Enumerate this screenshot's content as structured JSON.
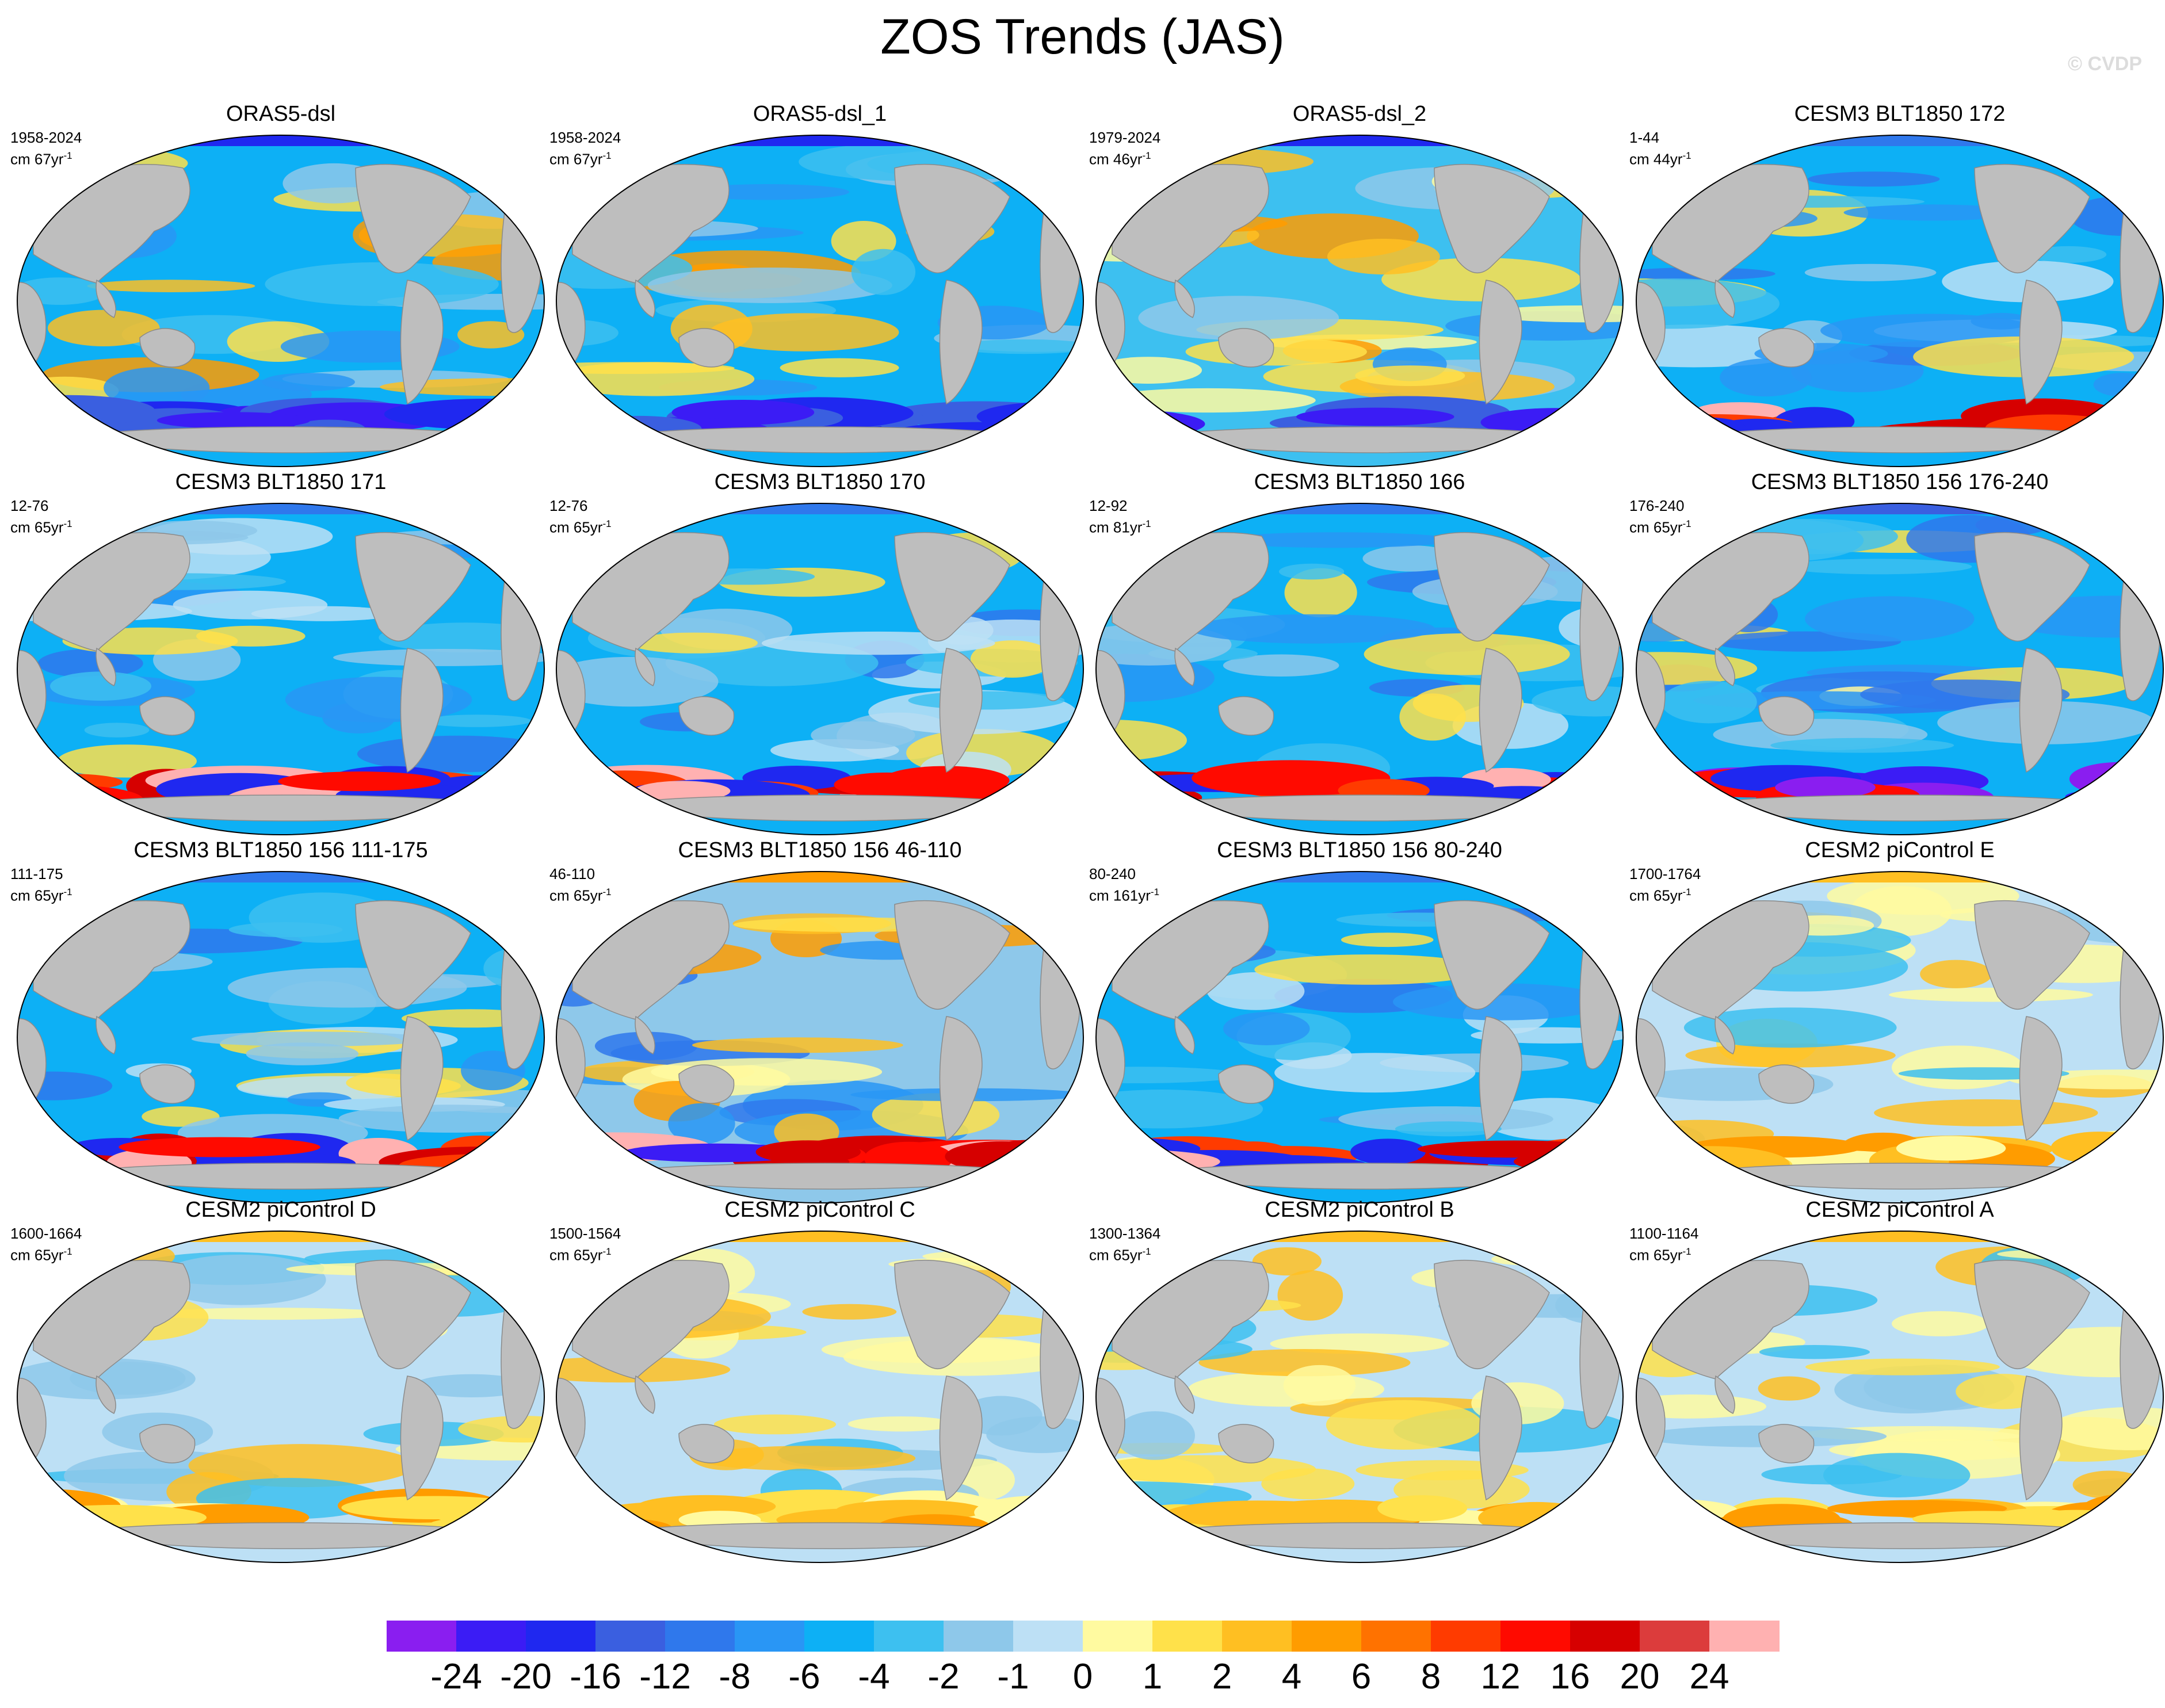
{
  "figure": {
    "title": "ZOS Trends (JAS)",
    "watermark": "© CVDP"
  },
  "panels": [
    {
      "title": "ORAS5-dsl",
      "years": "1958-2024",
      "units_prefix": "cm 67yr",
      "units_exp": "-1",
      "palette": "warm_obs"
    },
    {
      "title": "ORAS5-dsl_1",
      "years": "1958-2024",
      "units_prefix": "cm 67yr",
      "units_exp": "-1",
      "palette": "warm_obs"
    },
    {
      "title": "ORAS5-dsl_2",
      "years": "1979-2024",
      "units_prefix": "cm 46yr",
      "units_exp": "-1",
      "palette": "warm_obs2"
    },
    {
      "title": "CESM3 BLT1850 172",
      "years": "1-44",
      "units_prefix": "cm 44yr",
      "units_exp": "-1",
      "palette": "cool_red_south"
    },
    {
      "title": "CESM3 BLT1850 171",
      "years": "12-76",
      "units_prefix": "cm 65yr",
      "units_exp": "-1",
      "palette": "cool_red_south"
    },
    {
      "title": "CESM3 BLT1850 170",
      "years": "12-76",
      "units_prefix": "cm 65yr",
      "units_exp": "-1",
      "palette": "cool_red_south"
    },
    {
      "title": "CESM3 BLT1850 166",
      "years": "12-92",
      "units_prefix": "cm 81yr",
      "units_exp": "-1",
      "palette": "cool_red_south"
    },
    {
      "title": "CESM3 BLT1850 156 176-240",
      "years": "176-240",
      "units_prefix": "cm 65yr",
      "units_exp": "-1",
      "palette": "cool_blue_south"
    },
    {
      "title": "CESM3 BLT1850 156 111-175",
      "years": "111-175",
      "units_prefix": "cm 65yr",
      "units_exp": "-1",
      "palette": "cool_red_south"
    },
    {
      "title": "CESM3 BLT1850 156 46-110",
      "years": "46-110",
      "units_prefix": "cm 65yr",
      "units_exp": "-1",
      "palette": "mixed_red_south"
    },
    {
      "title": "CESM3 BLT1850 156 80-240",
      "years": "80-240",
      "units_prefix": "cm 161yr",
      "units_exp": "-1",
      "palette": "cool_red_south"
    },
    {
      "title": "CESM2 piControl E",
      "years": "1700-1764",
      "units_prefix": "cm 65yr",
      "units_exp": "-1",
      "palette": "neutral"
    },
    {
      "title": "CESM2 piControl D",
      "years": "1600-1664",
      "units_prefix": "cm 65yr",
      "units_exp": "-1",
      "palette": "neutral"
    },
    {
      "title": "CESM2 piControl C",
      "years": "1500-1564",
      "units_prefix": "cm 65yr",
      "units_exp": "-1",
      "palette": "neutral"
    },
    {
      "title": "CESM2 piControl B",
      "years": "1300-1364",
      "units_prefix": "cm 65yr",
      "units_exp": "-1",
      "palette": "neutral"
    },
    {
      "title": "CESM2 piControl A",
      "years": "1100-1164",
      "units_prefix": "cm 65yr",
      "units_exp": "-1",
      "palette": "neutral"
    }
  ],
  "colorbar": {
    "colors": [
      "#8a1ef0",
      "#3b1cf5",
      "#1f28f0",
      "#3a5fe0",
      "#2f78ec",
      "#2996f5",
      "#0db0f5",
      "#3dc0f0",
      "#8ec8ea",
      "#bde0f5",
      "#fffaa0",
      "#ffe14a",
      "#ffbf22",
      "#ff9c00",
      "#ff7200",
      "#ff3b00",
      "#ff0a00",
      "#d60000",
      "#dc3c3c",
      "#ffb1b1"
    ],
    "labels": [
      "-24",
      "-20",
      "-16",
      "-12",
      "-8",
      "-6",
      "-4",
      "-2",
      "-1",
      "0",
      "1",
      "2",
      "4",
      "6",
      "8",
      "12",
      "16",
      "20",
      "24"
    ]
  }
}
